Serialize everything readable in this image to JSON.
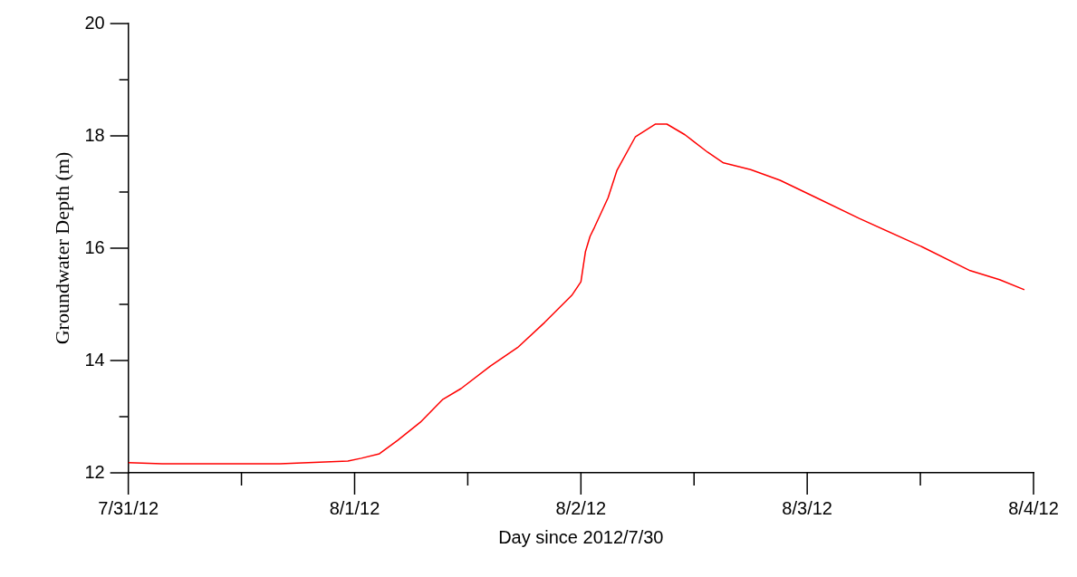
{
  "chart_data": {
    "type": "line",
    "xlabel": "Day since 2012/7/30",
    "ylabel": "Groundwater Depth (m)",
    "x": [
      "2012-07-31T00:00",
      "2012-07-31T03:36",
      "2012-07-31T16:05",
      "2012-07-31T23:17",
      "2012-08-01T00:43",
      "2012-08-01T02:38",
      "2012-08-01T04:34",
      "2012-08-01T06:58",
      "2012-08-01T09:22",
      "2012-08-01T11:17",
      "2012-08-01T14:24",
      "2012-08-01T17:17",
      "2012-08-01T20:10",
      "2012-08-01T23:02",
      "2012-08-02T00:00",
      "2012-08-02T00:29",
      "2012-08-02T00:58",
      "2012-08-02T01:26",
      "2012-08-02T02:53",
      "2012-08-02T03:50",
      "2012-08-02T05:46",
      "2012-08-02T07:55",
      "2012-08-02T09:07",
      "2012-08-02T11:02",
      "2012-08-02T13:26",
      "2012-08-02T15:07",
      "2012-08-02T18:00",
      "2012-08-02T21:07",
      "2012-08-03T00:58",
      "2012-08-03T05:31",
      "2012-08-03T12:14",
      "2012-08-03T17:17",
      "2012-08-03T20:24",
      "2012-08-03T23:02"
    ],
    "series": [
      {
        "color": "#ff0000",
        "values": [
          12.18,
          12.16,
          12.16,
          12.21,
          12.26,
          12.34,
          12.58,
          12.9,
          13.31,
          13.5,
          13.9,
          14.23,
          14.68,
          15.16,
          15.4,
          15.94,
          16.21,
          16.37,
          16.9,
          17.39,
          17.98,
          18.21,
          18.21,
          18.02,
          17.71,
          17.52,
          17.4,
          17.21,
          16.9,
          16.53,
          16.02,
          15.6,
          15.44,
          15.26
        ]
      }
    ],
    "xlim": [
      "2012-07-31",
      "2012-08-04"
    ],
    "xticks": [
      {
        "value": "2012-07-31",
        "label": "7/31/12"
      },
      {
        "value": "2012-07-31T12:00",
        "label": null
      },
      {
        "value": "2012-08-01",
        "label": "8/1/12"
      },
      {
        "value": "2012-08-01T12:00",
        "label": null
      },
      {
        "value": "2012-08-02",
        "label": "8/2/12"
      },
      {
        "value": "2012-08-02T12:00",
        "label": null
      },
      {
        "value": "2012-08-03",
        "label": "8/3/12"
      },
      {
        "value": "2012-08-03T12:00",
        "label": null
      },
      {
        "value": "2012-08-04",
        "label": "8/4/12"
      }
    ],
    "ylim": [
      12,
      20
    ],
    "yticks": [
      12,
      {
        "value": 13,
        "label": null
      },
      14,
      {
        "value": 15,
        "label": null
      },
      16,
      {
        "value": 17,
        "label": null
      },
      18,
      {
        "value": 19,
        "label": null
      },
      20
    ],
    "grid": false,
    "legend": false,
    "marker": "none",
    "line_style": "solid"
  }
}
